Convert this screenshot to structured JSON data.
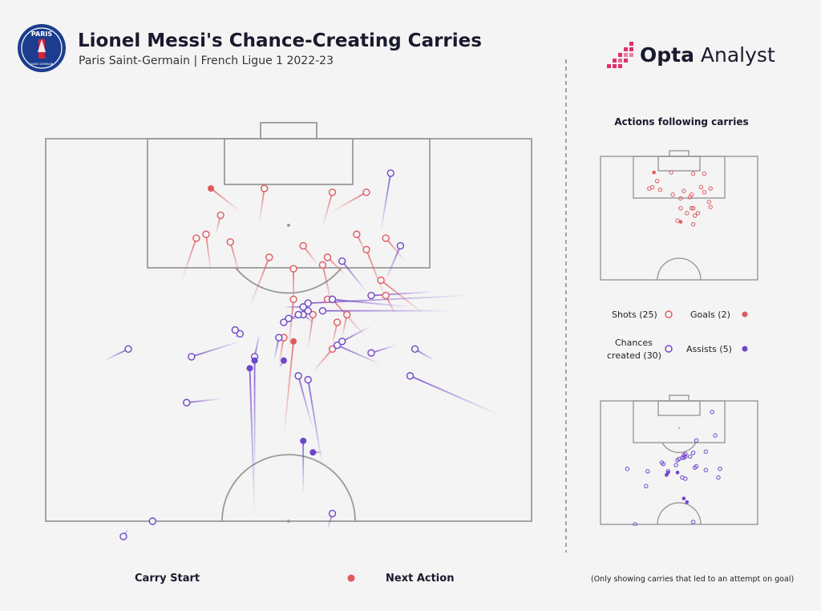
{
  "header": {
    "title": "Lionel Messi's Chance-Creating Carries",
    "subtitle": "Paris Saint-Germain | French Ligue 1 2022-23",
    "badge_text": "PARIS",
    "badge_subtext": "SAINT-GERMAIN"
  },
  "brand": {
    "name_bold": "Opta",
    "name_light": " Analyst"
  },
  "colors": {
    "shot": "#e05a5f",
    "chance": "#6f46c9",
    "pitch_line": "#9a9a9a",
    "background": "#f4f4f4",
    "brand_pink": "#e3306c",
    "badge_blue": "#1c3d8f",
    "badge_red": "#d6243b"
  },
  "sidebar": {
    "title": "Actions following carries",
    "legend": {
      "shots": "Shots (25)",
      "goals": "Goals (2)",
      "chances_line1": "Chances",
      "chances_line2": "created (30)",
      "assists": "Assists (5)"
    }
  },
  "footer": {
    "carry_start": "Carry Start",
    "next_action": "Next Action",
    "note": "(Only showing carries that led to an attempt on goal)"
  },
  "chart_data": {
    "type": "scatter",
    "title": "Lionel Messi's Chance-Creating Carries",
    "coordinate_system": "pitch x 0-100 across width (left to right), y 0-100 from attacking goal line (top) down to half-way line (bottom)",
    "legend": [
      "Shots (25)",
      "Goals (2)",
      "Chances created (30)",
      "Assists (5)"
    ],
    "series": [
      {
        "name": "Shots",
        "kind": "shot",
        "carries": [
          {
            "start": [
              28,
              37
            ],
            "end": [
              31,
              26
            ]
          },
          {
            "start": [
              34,
              35
            ],
            "end": [
              33,
              25
            ]
          },
          {
            "start": [
              40,
              36
            ],
            "end": [
              38,
              27
            ]
          },
          {
            "start": [
              35,
              25
            ],
            "end": [
              36,
              20
            ]
          },
          {
            "start": [
              44,
              22
            ],
            "end": [
              45,
              13
            ]
          },
          {
            "start": [
              57,
              23
            ],
            "end": [
              59,
              14
            ]
          },
          {
            "start": [
              59,
              19
            ],
            "end": [
              66,
              14
            ]
          },
          {
            "start": [
              66,
              30
            ],
            "end": [
              64,
              25
            ]
          },
          {
            "start": [
              74,
              32
            ],
            "end": [
              70,
              26
            ]
          },
          {
            "start": [
              70,
              42
            ],
            "end": [
              66,
              29
            ]
          },
          {
            "start": [
              62,
              36
            ],
            "end": [
              58,
              31
            ]
          },
          {
            "start": [
              56,
              33
            ],
            "end": [
              53,
              28
            ]
          },
          {
            "start": [
              66,
              52
            ],
            "end": [
              59,
              42
            ]
          },
          {
            "start": [
              59,
              44
            ],
            "end": [
              57,
              33
            ]
          },
          {
            "start": [
              51,
              46
            ],
            "end": [
              51,
              34
            ]
          },
          {
            "start": [
              54,
              55
            ],
            "end": [
              55,
              46
            ]
          },
          {
            "start": [
              50,
              55
            ],
            "end": [
              51,
              42
            ]
          },
          {
            "start": [
              61,
              52
            ],
            "end": [
              62,
              46
            ]
          },
          {
            "start": [
              59,
              41
            ],
            "end": [
              58,
              42
            ]
          },
          {
            "start": [
              72,
              46
            ],
            "end": [
              70,
              41
            ]
          },
          {
            "start": [
              78,
              46
            ],
            "end": [
              69,
              37
            ]
          },
          {
            "start": [
              59,
              54
            ],
            "end": [
              60,
              48
            ]
          },
          {
            "start": [
              48,
              59
            ],
            "end": [
              49,
              52
            ]
          },
          {
            "start": [
              55,
              61
            ],
            "end": [
              59,
              55
            ]
          },
          {
            "start": [
              42,
              44
            ],
            "end": [
              46,
              31
            ]
          }
        ]
      },
      {
        "name": "Goals",
        "kind": "goal",
        "carries": [
          {
            "start": [
              40,
              19
            ],
            "end": [
              34,
              13
            ]
          },
          {
            "start": [
              49,
              78
            ],
            "end": [
              51,
              53
            ]
          }
        ]
      },
      {
        "name": "Chances created",
        "kind": "chance",
        "carries": [
          {
            "start": [
              69,
              24
            ],
            "end": [
              71,
              9
            ]
          },
          {
            "start": [
              70,
              37
            ],
            "end": [
              73,
              28
            ]
          },
          {
            "start": [
              66,
              40
            ],
            "end": [
              61,
              32
            ]
          },
          {
            "start": [
              80,
              40
            ],
            "end": [
              67,
              41
            ]
          },
          {
            "start": [
              75,
              44
            ],
            "end": [
              59,
              42
            ]
          },
          {
            "start": [
              87,
              41
            ],
            "end": [
              54,
              43
            ]
          },
          {
            "start": [
              84,
              45
            ],
            "end": [
              57,
              45
            ]
          },
          {
            "start": [
              40,
              53
            ],
            "end": [
              30,
              57
            ]
          },
          {
            "start": [
              39,
              52
            ],
            "end": [
              40,
              51
            ]
          },
          {
            "start": [
              47,
              58
            ],
            "end": [
              48,
              52
            ]
          },
          {
            "start": [
              44,
              51
            ],
            "end": [
              43,
              57
            ]
          },
          {
            "start": [
              67,
              49
            ],
            "end": [
              61,
              53
            ]
          },
          {
            "start": [
              69,
              59
            ],
            "end": [
              60,
              54
            ]
          },
          {
            "start": [
              80,
              58
            ],
            "end": [
              76,
              55
            ]
          },
          {
            "start": [
              93,
              72
            ],
            "end": [
              75,
              62
            ]
          },
          {
            "start": [
              72,
              54
            ],
            "end": [
              67,
              56
            ]
          },
          {
            "start": [
              12,
              58
            ],
            "end": [
              17,
              55
            ]
          },
          {
            "start": [
              48,
              48
            ],
            "end": [
              49,
              48
            ]
          },
          {
            "start": [
              52,
              47
            ],
            "end": [
              50,
              47
            ]
          },
          {
            "start": [
              55,
              48
            ],
            "end": [
              53,
              46
            ]
          },
          {
            "start": [
              53,
              44
            ],
            "end": [
              54,
              45
            ]
          },
          {
            "start": [
              49,
              44
            ],
            "end": [
              53,
              44
            ]
          },
          {
            "start": [
              49,
              48
            ],
            "end": [
              52,
              46
            ]
          },
          {
            "start": [
              40,
              50
            ],
            "end": [
              39,
              50
            ]
          },
          {
            "start": [
              55,
              76
            ],
            "end": [
              52,
              62
            ]
          },
          {
            "start": [
              57,
              86
            ],
            "end": [
              54,
              63
            ]
          },
          {
            "start": [
              36,
              68
            ],
            "end": [
              29,
              69
            ]
          },
          {
            "start": [
              21,
              100
            ],
            "end": [
              22,
              100
            ]
          },
          {
            "start": [
              17,
              102
            ],
            "end": [
              16,
              104
            ]
          },
          {
            "start": [
              58,
              102
            ],
            "end": [
              59,
              98
            ]
          }
        ]
      },
      {
        "name": "Assists",
        "kind": "assist",
        "carries": [
          {
            "start": [
              43,
              89
            ],
            "end": [
              43,
              58
            ]
          },
          {
            "start": [
              48,
              60
            ],
            "end": [
              49,
              58
            ]
          },
          {
            "start": [
              53,
              93
            ],
            "end": [
              53,
              79
            ]
          },
          {
            "start": [
              57,
              82
            ],
            "end": [
              55,
              82
            ]
          },
          {
            "start": [
              43,
              98
            ],
            "end": [
              42,
              60
            ]
          }
        ]
      }
    ]
  }
}
